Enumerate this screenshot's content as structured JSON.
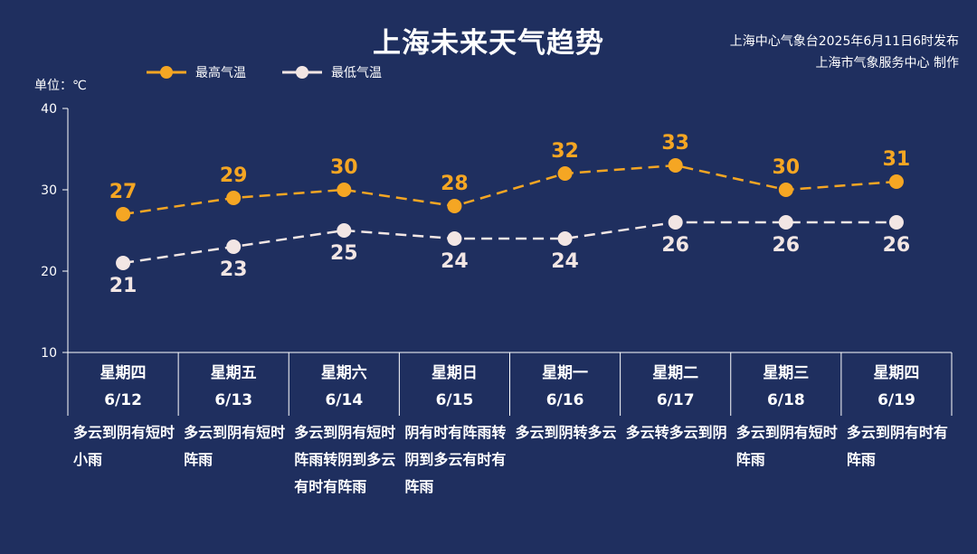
{
  "title": "上海未来天气趋势",
  "source_line1": "上海中心气象台2025年6月11日6时发布",
  "source_line2": "上海市气象服务中心 制作",
  "unit_label": "单位：℃",
  "legend": {
    "high": "最高气温",
    "low": "最低气温"
  },
  "colors": {
    "background": "#1f2f5f",
    "high": "#f5a623",
    "low": "#f2e6e4",
    "axis": "#ffffff"
  },
  "chart_data": {
    "type": "line",
    "title": "上海未来天气趋势",
    "ylabel": "单位：℃",
    "ylim": [
      10,
      40
    ],
    "yticks": [
      10,
      20,
      30,
      40
    ],
    "categories": [
      "星期四 6/12",
      "星期五 6/13",
      "星期六 6/14",
      "星期日 6/15",
      "星期一 6/16",
      "星期二 6/17",
      "星期三 6/18",
      "星期四 6/19"
    ],
    "series": [
      {
        "name": "最高气温",
        "values": [
          27,
          29,
          30,
          28,
          32,
          33,
          30,
          31
        ]
      },
      {
        "name": "最低气温",
        "values": [
          21,
          23,
          25,
          24,
          24,
          26,
          26,
          26
        ]
      }
    ],
    "legend_position": "top-left",
    "grid": false
  },
  "days": [
    {
      "weekday": "星期四",
      "date": "6/12",
      "desc": "多云到阴有短时小雨"
    },
    {
      "weekday": "星期五",
      "date": "6/13",
      "desc": "多云到阴有短时阵雨"
    },
    {
      "weekday": "星期六",
      "date": "6/14",
      "desc": "多云到阴有短时阵雨转阴到多云有时有阵雨"
    },
    {
      "weekday": "星期日",
      "date": "6/15",
      "desc": "阴有时有阵雨转阴到多云有时有阵雨"
    },
    {
      "weekday": "星期一",
      "date": "6/16",
      "desc": "多云到阴转多云"
    },
    {
      "weekday": "星期二",
      "date": "6/17",
      "desc": "多云转多云到阴"
    },
    {
      "weekday": "星期三",
      "date": "6/18",
      "desc": "多云到阴有短时阵雨"
    },
    {
      "weekday": "星期四",
      "date": "6/19",
      "desc": "多云到阴有时有阵雨"
    }
  ]
}
